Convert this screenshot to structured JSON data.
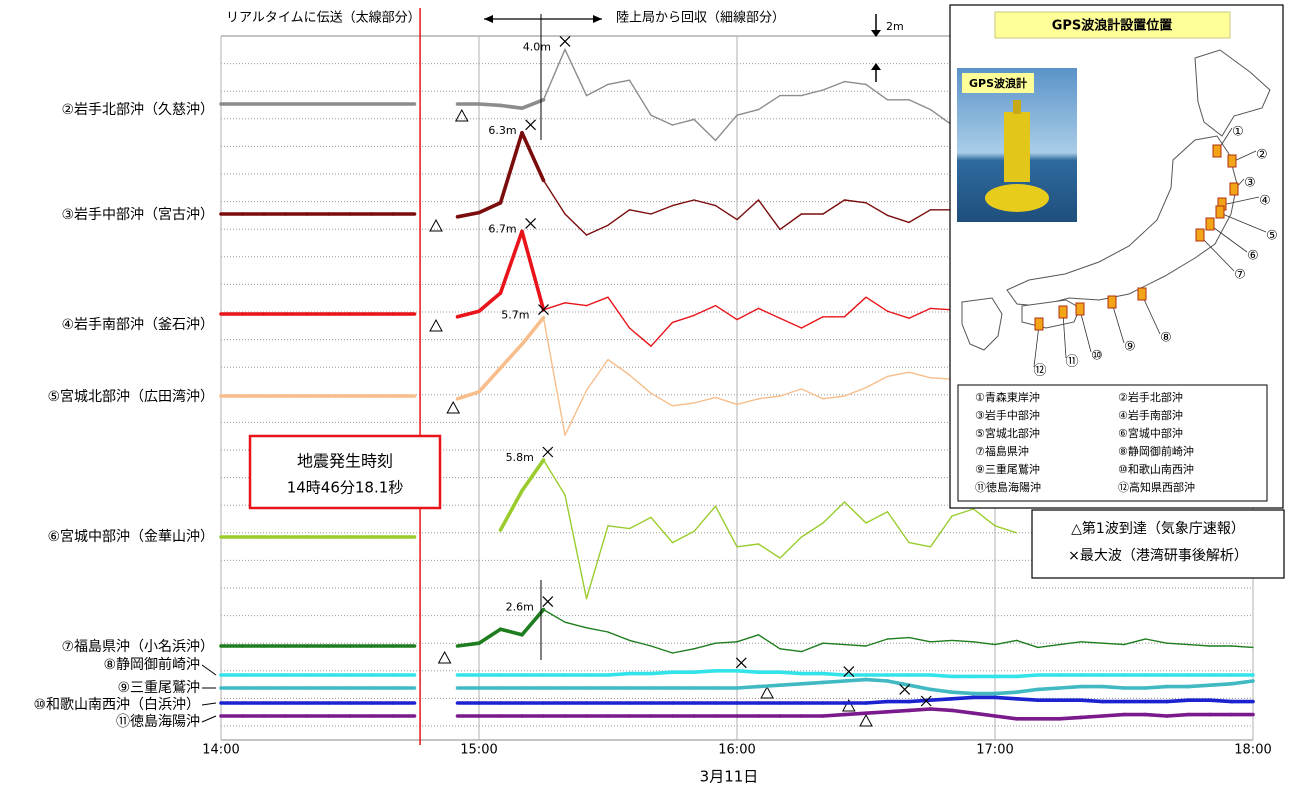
{
  "chart_data": {
    "type": "line",
    "x_label": "3月11日",
    "x": [
      840,
      845,
      850,
      855,
      860,
      865,
      870,
      875,
      880,
      885,
      890,
      895,
      900,
      905,
      910,
      915,
      920,
      925,
      930,
      935,
      940,
      945,
      950,
      955,
      960,
      965,
      970,
      975,
      980,
      985,
      990,
      995,
      1000,
      1005,
      1010,
      1015,
      1020,
      1025,
      1030,
      1035,
      1040,
      1045,
      1050,
      1055,
      1060,
      1065,
      1070,
      1075,
      1080
    ],
    "xlim": [
      840,
      1080
    ],
    "xticks": [
      {
        "value": 840,
        "label": "14:00"
      },
      {
        "value": 900,
        "label": "15:00"
      },
      {
        "value": 960,
        "label": "16:00"
      },
      {
        "value": 1020,
        "label": "17:00"
      },
      {
        "value": 1080,
        "label": "18:00"
      }
    ],
    "grid": true,
    "series": [
      {
        "name": "②岩手北部沖（久慈沖）",
        "color": "#8c8c8c",
        "first_wave": 896,
        "max_wave": 920,
        "max_label": "4.0m",
        "values": [
          0,
          0,
          0,
          0,
          0,
          0,
          0,
          0,
          0,
          0,
          null,
          0,
          0,
          -0.1,
          -0.3,
          0.3,
          3.9,
          0.6,
          1.4,
          1.7,
          -0.8,
          -1.5,
          -1.1,
          -2.6,
          -0.8,
          -0.4,
          0.6,
          0.6,
          1.0,
          1.6,
          1.4,
          0.3,
          0.3,
          -0.4,
          -1.5,
          null,
          null,
          null,
          null,
          null,
          null,
          null,
          null,
          null,
          null,
          null,
          null,
          null,
          null
        ]
      },
      {
        "name": "③岩手中部沖（宮古沖）",
        "color": "#7b0c0c",
        "first_wave": 890,
        "max_wave": 912,
        "max_label": "6.3m",
        "values": [
          0,
          0,
          0,
          0,
          0,
          0,
          0,
          0,
          0,
          0,
          null,
          -0.2,
          0.1,
          0.8,
          5.8,
          2.4,
          0,
          -1.5,
          -0.8,
          0.3,
          0,
          0.6,
          1.0,
          0.6,
          -0.4,
          1.0,
          -1.1,
          0,
          0,
          1.0,
          0.8,
          -0.1,
          -0.6,
          0.3,
          0.3,
          null,
          null,
          null,
          null,
          null,
          null,
          null,
          null,
          null,
          null,
          null,
          null,
          null,
          null
        ]
      },
      {
        "name": "④岩手南部沖（釜石沖）",
        "color": "#e8141a",
        "first_wave": 890,
        "max_wave": 912,
        "max_label": "6.7m",
        "values": [
          0,
          0,
          0,
          0,
          0,
          0,
          0,
          0,
          0,
          0,
          null,
          -0.2,
          0.2,
          1.5,
          5.9,
          0.3,
          0.8,
          0.6,
          1.2,
          -1.0,
          -2.3,
          -0.6,
          -0.1,
          0.6,
          -0.4,
          0.4,
          -0.3,
          -1.0,
          -0.2,
          -0.2,
          1.2,
          0.2,
          -0.3,
          0.4,
          0.3,
          null,
          null,
          null,
          null,
          null,
          null,
          null,
          null,
          null,
          null,
          null,
          null,
          null,
          null
        ]
      },
      {
        "name": "⑤宮城北部沖（広田湾沖）",
        "color": "#f7be8c",
        "first_wave": 894,
        "max_wave": 915,
        "max_label": "5.7m",
        "values": [
          0,
          0,
          0,
          0,
          0,
          0,
          0,
          0,
          0,
          0,
          null,
          -0.2,
          0.3,
          2.0,
          3.7,
          5.6,
          -2.8,
          0.4,
          2.6,
          1.5,
          0.2,
          -0.7,
          -0.5,
          -0.1,
          -0.6,
          -0.2,
          0,
          0.5,
          -0.2,
          0,
          0.6,
          1.4,
          1.7,
          1.3,
          1.2,
          null,
          null,
          null,
          null,
          null,
          null,
          null,
          null,
          null,
          null,
          null,
          null,
          null,
          null
        ]
      },
      {
        "name": "⑥宮城中部沖（金華山沖）",
        "color": "#9acc2e",
        "max_wave": 916,
        "max_label": "5.8m",
        "values": [
          0,
          0,
          0,
          0,
          0,
          0,
          0,
          0,
          0,
          0,
          null,
          null,
          null,
          0.5,
          3.3,
          5.5,
          3.0,
          -4.4,
          0.8,
          0.6,
          1.4,
          -0.4,
          0.4,
          2.2,
          -0.7,
          -0.5,
          -1.5,
          0,
          1.0,
          2.5,
          1.0,
          1.8,
          -0.4,
          -0.7,
          1.5,
          2.0,
          0.8,
          0.3,
          null,
          null,
          null,
          null,
          null,
          null,
          null,
          null,
          null,
          null,
          null
        ]
      },
      {
        "name": "⑦福島県沖（小名浜沖）",
        "color": "#1e7d1e",
        "first_wave": 892,
        "max_wave": 916,
        "max_label": "2.6m",
        "values": [
          0,
          0,
          0,
          0,
          0,
          0,
          0,
          0,
          0,
          0,
          null,
          0,
          0.2,
          1.2,
          0.8,
          2.6,
          1.7,
          1.3,
          1.0,
          0.4,
          0,
          -0.5,
          -0.2,
          0.2,
          0.3,
          0.8,
          -0.2,
          -0.4,
          0.2,
          0.1,
          0,
          0.5,
          0.6,
          0.3,
          0.4,
          0.3,
          0.1,
          0.4,
          -0.1,
          0.1,
          0.3,
          0.2,
          0.1,
          0.5,
          0.2,
          0.1,
          0,
          0,
          -0.1
        ]
      },
      {
        "name": "⑧静岡御前崎沖",
        "color": "#33e3ea",
        "first_wave": 967,
        "max_wave": 961,
        "values": [
          0,
          0,
          0,
          0,
          0,
          0,
          0,
          0,
          0,
          0,
          null,
          0,
          0,
          0,
          0,
          0,
          0,
          0,
          0,
          0.1,
          0.1,
          0.2,
          0.2,
          0.3,
          0.3,
          0.2,
          0.2,
          0.1,
          0.1,
          0,
          0,
          0,
          0,
          0,
          -0.1,
          -0.1,
          -0.1,
          -0.1,
          0,
          0,
          0,
          0,
          0,
          0,
          0,
          0,
          0,
          0,
          0
        ]
      },
      {
        "name": "⑨三重尾鷲沖",
        "color": "#40b9c2",
        "first_wave": 986,
        "max_wave": 986,
        "values": [
          0,
          0,
          0,
          0,
          0,
          0,
          0,
          0,
          0,
          0,
          null,
          0,
          0,
          0,
          0,
          0,
          0,
          0,
          0,
          0,
          0,
          0,
          0,
          0,
          0,
          0.1,
          0.2,
          0.3,
          0.4,
          0.5,
          0.6,
          0.5,
          0.2,
          -0.1,
          -0.3,
          -0.4,
          -0.4,
          -0.3,
          -0.1,
          0,
          0.1,
          0.1,
          0,
          0,
          0.1,
          0.1,
          0.2,
          0.3,
          0.5
        ]
      },
      {
        "name": "⑩和歌山南西沖（白浜沖）",
        "color": "#1c22cf",
        "first_wave": 990,
        "max_wave": 999,
        "values": [
          0,
          0,
          0,
          0,
          0,
          0,
          0,
          0,
          0,
          0,
          null,
          0,
          0,
          0,
          0,
          0,
          0,
          0,
          0,
          0,
          0,
          0,
          0,
          0,
          0,
          0,
          0,
          0,
          0,
          0,
          0,
          0.1,
          0.1,
          0.2,
          0.3,
          0.4,
          0.4,
          0.3,
          0.2,
          0.2,
          0.2,
          0.1,
          0.1,
          0.1,
          0.1,
          0.2,
          0.2,
          0.1,
          0.1
        ]
      },
      {
        "name": "⑪徳島海陽沖",
        "color": "#7a1a8c",
        "max_wave": 1004,
        "values": [
          0,
          0,
          0,
          0,
          0,
          0,
          0,
          0,
          0,
          0,
          null,
          0,
          0,
          0,
          0,
          0,
          0,
          0,
          0,
          0,
          0,
          0,
          0,
          0,
          0,
          0,
          0,
          0,
          0,
          0.1,
          0.2,
          0.3,
          0.4,
          0.5,
          0.4,
          0.2,
          0,
          -0.2,
          -0.2,
          -0.2,
          -0.1,
          0,
          0.1,
          0.1,
          0,
          0.1,
          0.1,
          0.1,
          0.1
        ]
      }
    ]
  },
  "annotations": {
    "realtime": "リアルタイムに伝送（太線部分）",
    "recovered": "陸上局から回収（細線部分）",
    "scale_label": "2m",
    "quake_title": "地震発生時刻",
    "quake_time": "14時46分18.1秒",
    "earthquake_minute": 886.3,
    "legend_arrival": "△第1波到達（気象庁速報）",
    "legend_max": "×最大波（港湾研事後解析）"
  },
  "inset": {
    "title": "GPS波浪計設置位置",
    "photo_label": "GPS波浪計",
    "map_labels": [
      "①",
      "②",
      "③",
      "④",
      "⑤",
      "⑥",
      "⑦",
      "⑧",
      "⑨",
      "⑩",
      "⑪",
      "⑫"
    ],
    "list": [
      "①青森東岸沖",
      "②岩手北部沖",
      "③岩手中部沖",
      "④岩手南部沖",
      "⑤宮城北部沖",
      "⑥宮城中部沖",
      "⑦福島県沖",
      "⑧静岡御前崎沖",
      "⑨三重尾鷲沖",
      "⑩和歌山南西沖",
      "⑪徳島海陽沖",
      "⑫高知県西部沖"
    ]
  }
}
